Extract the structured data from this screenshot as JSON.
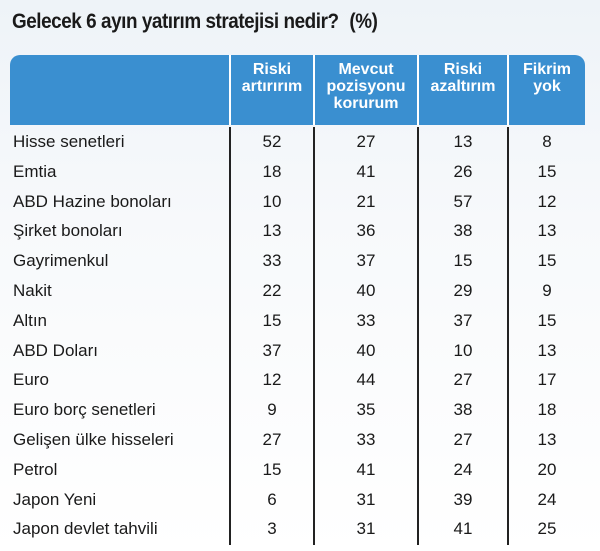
{
  "title": "Gelecek 6 ayın yatırım stratejisi nedir?",
  "unit": "(%)",
  "colors": {
    "header": "#3a8fd0",
    "header_text": "#ffffff"
  },
  "chart_data": {
    "type": "table",
    "title": "Gelecek 6 ayın yatırım stratejisi nedir? (%)",
    "columns": [
      "Riski artırırım",
      "Mevcut pozisyonu korurum",
      "Riski azaltırım",
      "Fikrim yok"
    ],
    "rows": [
      {
        "label": "Hisse senetleri",
        "values": [
          52,
          27,
          13,
          8
        ]
      },
      {
        "label": "Emtia",
        "values": [
          18,
          41,
          26,
          15
        ]
      },
      {
        "label": "ABD Hazine bonoları",
        "values": [
          10,
          21,
          57,
          12
        ]
      },
      {
        "label": "Şirket bonoları",
        "values": [
          13,
          36,
          38,
          13
        ]
      },
      {
        "label": "Gayrimenkul",
        "values": [
          33,
          37,
          15,
          15
        ]
      },
      {
        "label": "Nakit",
        "values": [
          22,
          40,
          29,
          9
        ]
      },
      {
        "label": "Altın",
        "values": [
          15,
          33,
          37,
          15
        ]
      },
      {
        "label": "ABD Doları",
        "values": [
          37,
          40,
          10,
          13
        ]
      },
      {
        "label": "Euro",
        "values": [
          12,
          44,
          27,
          17
        ]
      },
      {
        "label": "Euro borç senetleri",
        "values": [
          9,
          35,
          38,
          18
        ]
      },
      {
        "label": "Gelişen ülke hisseleri",
        "values": [
          27,
          33,
          27,
          13
        ]
      },
      {
        "label": "Petrol",
        "values": [
          15,
          41,
          24,
          20
        ]
      },
      {
        "label": "Japon Yeni",
        "values": [
          6,
          31,
          39,
          24
        ]
      },
      {
        "label": "Japon devlet tahvili",
        "values": [
          3,
          31,
          41,
          25
        ]
      }
    ]
  },
  "header_lines": [
    "Riski\nartırırım",
    "Mevcut\npozisyonu\nkorurum",
    "Riski\nazaltırım",
    "Fikrim\nyok"
  ]
}
